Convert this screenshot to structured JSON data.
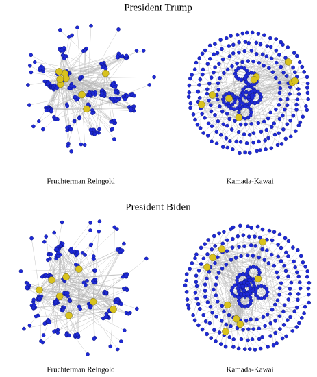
{
  "sections": [
    {
      "title": "President Trump",
      "panels": [
        {
          "label": "Fruchterman Reingold"
        },
        {
          "label": "Kamada-Kawai"
        }
      ]
    },
    {
      "title": "President Biden",
      "panels": [
        {
          "label": "Fruchterman Reingold"
        },
        {
          "label": "Kamada-Kawai"
        }
      ]
    }
  ]
}
